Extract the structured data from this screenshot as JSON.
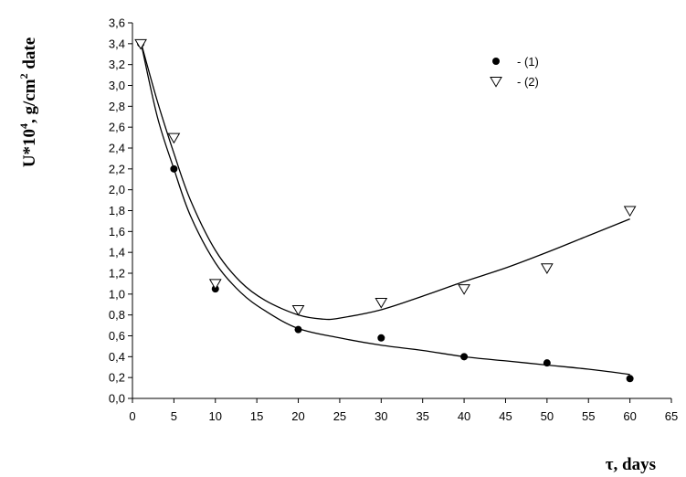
{
  "chart_data": {
    "type": "scatter",
    "x_axis": {
      "min": 0,
      "max": 65,
      "step": 5,
      "tick_labels": [
        "0",
        "5",
        "10",
        "15",
        "20",
        "25",
        "30",
        "35",
        "40",
        "45",
        "50",
        "55",
        "60",
        "65"
      ],
      "label": "τ, days"
    },
    "y_axis": {
      "min": 0,
      "max": 3.6,
      "step": 0.2,
      "tick_labels": [
        "0,0",
        "0,2",
        "0,4",
        "0,6",
        "0,8",
        "1,0",
        "1,2",
        "1,4",
        "1,6",
        "1,8",
        "2,0",
        "2,2",
        "2,4",
        "2,6",
        "2,8",
        "3,0",
        "3,2",
        "3,4",
        "3,6"
      ],
      "label_parts": {
        "base": "U*10",
        "exp1": "4",
        "mid": ", g/cm",
        "exp2": "2",
        "end": " date"
      }
    },
    "grid": false,
    "legend": "top-right",
    "series": [
      {
        "name": "- (1)",
        "marker": "filled-circle",
        "color": "#000000",
        "points": [
          [
            1,
            3.4
          ],
          [
            5,
            2.2
          ],
          [
            10,
            1.05
          ],
          [
            20,
            0.66
          ],
          [
            30,
            0.58
          ],
          [
            40,
            0.4
          ],
          [
            50,
            0.34
          ],
          [
            60,
            0.19
          ]
        ],
        "fit_curve": [
          [
            1,
            3.42
          ],
          [
            3,
            2.7
          ],
          [
            5,
            2.2
          ],
          [
            7,
            1.75
          ],
          [
            10,
            1.3
          ],
          [
            13,
            1.02
          ],
          [
            16,
            0.84
          ],
          [
            20,
            0.67
          ],
          [
            25,
            0.58
          ],
          [
            30,
            0.51
          ],
          [
            35,
            0.46
          ],
          [
            40,
            0.4
          ],
          [
            45,
            0.36
          ],
          [
            50,
            0.32
          ],
          [
            55,
            0.28
          ],
          [
            60,
            0.23
          ]
        ]
      },
      {
        "name": "- (2)",
        "marker": "open-triangle-down",
        "color": "#000000",
        "points": [
          [
            1,
            3.4
          ],
          [
            5,
            2.5
          ],
          [
            10,
            1.1
          ],
          [
            20,
            0.85
          ],
          [
            30,
            0.92
          ],
          [
            40,
            1.05
          ],
          [
            50,
            1.25
          ],
          [
            60,
            1.8
          ]
        ],
        "fit_curve": [
          [
            1,
            3.42
          ],
          [
            3,
            2.85
          ],
          [
            5,
            2.35
          ],
          [
            7,
            1.9
          ],
          [
            10,
            1.42
          ],
          [
            13,
            1.12
          ],
          [
            16,
            0.94
          ],
          [
            20,
            0.8
          ],
          [
            23,
            0.76
          ],
          [
            25,
            0.77
          ],
          [
            30,
            0.85
          ],
          [
            35,
            0.98
          ],
          [
            40,
            1.12
          ],
          [
            45,
            1.25
          ],
          [
            50,
            1.4
          ],
          [
            55,
            1.56
          ],
          [
            60,
            1.72
          ]
        ]
      }
    ]
  }
}
